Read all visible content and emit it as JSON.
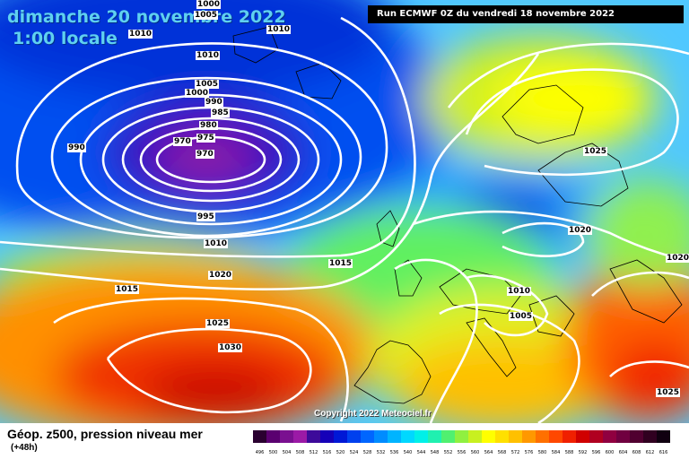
{
  "header": {
    "date": "dimanche 20 novembre 2022",
    "time": "1:00 locale",
    "run": "Run ECMWF 0Z du vendredi 18 novembre 2022"
  },
  "copyright": "Copyright 2022 Meteociel.fr",
  "legend": {
    "title": "Géop. z500, pression niveau mer",
    "subtitle": "(+48h)",
    "scale": [
      {
        "value": "496",
        "color": "#2a0030"
      },
      {
        "value": "500",
        "color": "#5a0070"
      },
      {
        "value": "504",
        "color": "#7a1090"
      },
      {
        "value": "508",
        "color": "#9b1aa6"
      },
      {
        "value": "512",
        "color": "#3d0a9a"
      },
      {
        "value": "516",
        "color": "#1500b8"
      },
      {
        "value": "520",
        "color": "#0018d6"
      },
      {
        "value": "524",
        "color": "#0040ee"
      },
      {
        "value": "528",
        "color": "#0066ff"
      },
      {
        "value": "532",
        "color": "#008cff"
      },
      {
        "value": "536",
        "color": "#00b4ff"
      },
      {
        "value": "540",
        "color": "#00d8ff"
      },
      {
        "value": "544",
        "color": "#00f0e8"
      },
      {
        "value": "548",
        "color": "#20f0b0"
      },
      {
        "value": "552",
        "color": "#50f070"
      },
      {
        "value": "556",
        "color": "#90f040"
      },
      {
        "value": "560",
        "color": "#c8f020"
      },
      {
        "value": "564",
        "color": "#ffff00"
      },
      {
        "value": "568",
        "color": "#ffe000"
      },
      {
        "value": "572",
        "color": "#ffc000"
      },
      {
        "value": "576",
        "color": "#ff9800"
      },
      {
        "value": "580",
        "color": "#ff7000"
      },
      {
        "value": "584",
        "color": "#ff4800"
      },
      {
        "value": "588",
        "color": "#f02000"
      },
      {
        "value": "592",
        "color": "#d00000"
      },
      {
        "value": "596",
        "color": "#b00020"
      },
      {
        "value": "600",
        "color": "#900040"
      },
      {
        "value": "604",
        "color": "#700040"
      },
      {
        "value": "608",
        "color": "#500030"
      },
      {
        "value": "612",
        "color": "#300020"
      },
      {
        "value": "616",
        "color": "#100010"
      }
    ]
  },
  "isobars": {
    "l970a": "970",
    "l970b": "970",
    "l975": "975",
    "l980": "980",
    "l985": "985",
    "l990a": "990",
    "l990b": "990",
    "l995": "995",
    "l1000a": "1000",
    "l1000b": "1000",
    "l1005a": "1005",
    "l1005b": "1005",
    "l1010a": "1010",
    "l1010b": "1010",
    "l1010c": "1010",
    "l1010d": "1010",
    "l1010e": "1010",
    "l1015a": "1015",
    "l1015b": "1015",
    "l1020a": "1020",
    "l1020b": "1020",
    "l1020c": "1020",
    "l1025a": "1025",
    "l1025b": "1025",
    "l1025c": "1025",
    "l1030": "1030"
  }
}
